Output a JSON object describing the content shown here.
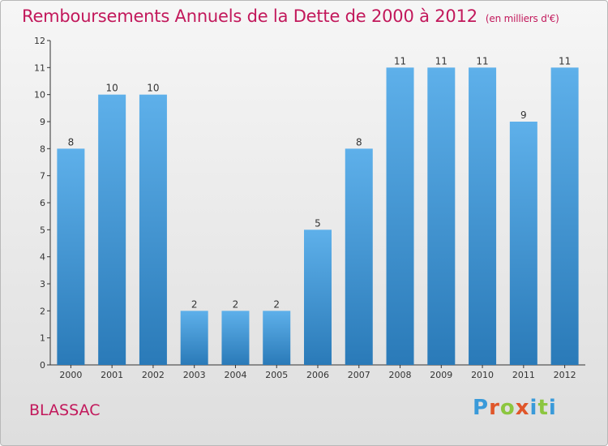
{
  "chart_data": {
    "type": "bar",
    "title": "Remboursements Annuels de la Dette de 2000 à 2012",
    "subtitle": "(en milliers d'€)",
    "categories": [
      "2000",
      "2001",
      "2002",
      "2003",
      "2004",
      "2005",
      "2006",
      "2007",
      "2008",
      "2009",
      "2010",
      "2011",
      "2012"
    ],
    "values": [
      8,
      10,
      10,
      2,
      2,
      2,
      5,
      8,
      11,
      11,
      11,
      9,
      11
    ],
    "ylim": [
      0,
      12
    ],
    "yticks": [
      0,
      1,
      2,
      3,
      4,
      5,
      6,
      7,
      8,
      9,
      10,
      11,
      12
    ],
    "grid": false,
    "legend": "none",
    "bar_color_top": "#5eb0ea",
    "bar_color_bottom": "#2a7ab8"
  },
  "footer": {
    "commune": "BLASSAC",
    "brand": [
      "P",
      "r",
      "o",
      "x",
      "i",
      "t",
      "i"
    ],
    "brand_colors": [
      "#3a9ad9",
      "#e0562a",
      "#8cc63f",
      "#e0562a",
      "#3a9ad9",
      "#8cc63f",
      "#3a9ad9"
    ]
  },
  "colors": {
    "title": "#c2185b",
    "axis": "#333333"
  }
}
